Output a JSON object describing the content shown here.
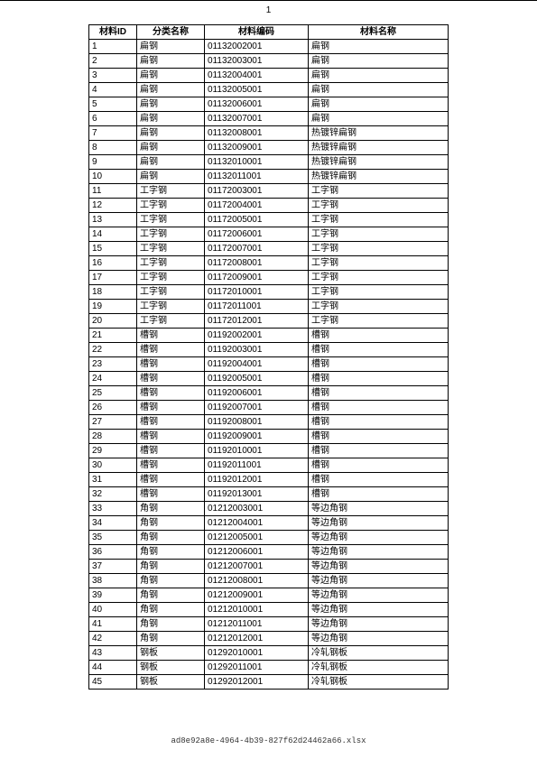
{
  "page_number": "1",
  "footer_text": "ad8e92a8e-4964-4b39-827f62d24462a66.xlsx",
  "table": {
    "columns": [
      "材料ID",
      "分类名称",
      "材料编码",
      "材料名称"
    ],
    "rows": [
      [
        "1",
        "扁钢",
        "01132002001",
        "扁钢"
      ],
      [
        "2",
        "扁钢",
        "01132003001",
        "扁钢"
      ],
      [
        "3",
        "扁钢",
        "01132004001",
        "扁钢"
      ],
      [
        "4",
        "扁钢",
        "01132005001",
        "扁钢"
      ],
      [
        "5",
        "扁钢",
        "01132006001",
        "扁钢"
      ],
      [
        "6",
        "扁钢",
        "01132007001",
        "扁钢"
      ],
      [
        "7",
        "扁钢",
        "01132008001",
        "热镀锌扁钢"
      ],
      [
        "8",
        "扁钢",
        "01132009001",
        "热镀锌扁钢"
      ],
      [
        "9",
        "扁钢",
        "01132010001",
        "热镀锌扁钢"
      ],
      [
        "10",
        "扁钢",
        "01132011001",
        "热镀锌扁钢"
      ],
      [
        "11",
        "工字钢",
        "01172003001",
        "工字钢"
      ],
      [
        "12",
        "工字钢",
        "01172004001",
        "工字钢"
      ],
      [
        "13",
        "工字钢",
        "01172005001",
        "工字钢"
      ],
      [
        "14",
        "工字钢",
        "01172006001",
        "工字钢"
      ],
      [
        "15",
        "工字钢",
        "01172007001",
        "工字钢"
      ],
      [
        "16",
        "工字钢",
        "01172008001",
        "工字钢"
      ],
      [
        "17",
        "工字钢",
        "01172009001",
        "工字钢"
      ],
      [
        "18",
        "工字钢",
        "01172010001",
        "工字钢"
      ],
      [
        "19",
        "工字钢",
        "01172011001",
        "工字钢"
      ],
      [
        "20",
        "工字钢",
        "01172012001",
        "工字钢"
      ],
      [
        "21",
        "槽钢",
        "01192002001",
        "槽钢"
      ],
      [
        "22",
        "槽钢",
        "01192003001",
        "槽钢"
      ],
      [
        "23",
        "槽钢",
        "01192004001",
        "槽钢"
      ],
      [
        "24",
        "槽钢",
        "01192005001",
        "槽钢"
      ],
      [
        "25",
        "槽钢",
        "01192006001",
        "槽钢"
      ],
      [
        "26",
        "槽钢",
        "01192007001",
        "槽钢"
      ],
      [
        "27",
        "槽钢",
        "01192008001",
        "槽钢"
      ],
      [
        "28",
        "槽钢",
        "01192009001",
        "槽钢"
      ],
      [
        "29",
        "槽钢",
        "01192010001",
        "槽钢"
      ],
      [
        "30",
        "槽钢",
        "01192011001",
        "槽钢"
      ],
      [
        "31",
        "槽钢",
        "01192012001",
        "槽钢"
      ],
      [
        "32",
        "槽钢",
        "01192013001",
        "槽钢"
      ],
      [
        "33",
        "角钢",
        "01212003001",
        "等边角钢"
      ],
      [
        "34",
        "角钢",
        "01212004001",
        "等边角钢"
      ],
      [
        "35",
        "角钢",
        "01212005001",
        "等边角钢"
      ],
      [
        "36",
        "角钢",
        "01212006001",
        "等边角钢"
      ],
      [
        "37",
        "角钢",
        "01212007001",
        "等边角钢"
      ],
      [
        "38",
        "角钢",
        "01212008001",
        "等边角钢"
      ],
      [
        "39",
        "角钢",
        "01212009001",
        "等边角钢"
      ],
      [
        "40",
        "角钢",
        "01212010001",
        "等边角钢"
      ],
      [
        "41",
        "角钢",
        "01212011001",
        "等边角钢"
      ],
      [
        "42",
        "角钢",
        "01212012001",
        "等边角钢"
      ],
      [
        "43",
        "钢板",
        "01292010001",
        "冷轧钢板"
      ],
      [
        "44",
        "钢板",
        "01292011001",
        "冷轧钢板"
      ],
      [
        "45",
        "钢板",
        "01292012001",
        "冷轧钢板"
      ]
    ]
  }
}
